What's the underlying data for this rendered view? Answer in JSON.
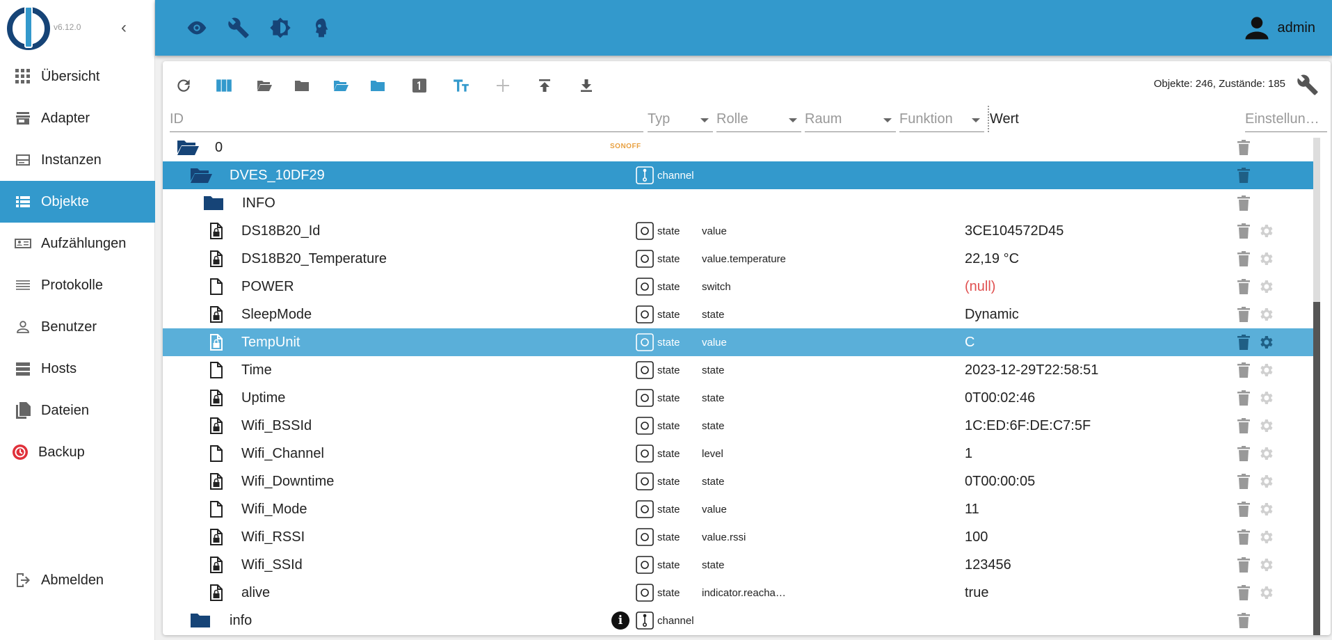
{
  "app": {
    "version": "v6.12.0",
    "user": "admin"
  },
  "colors": {
    "primary": "#3399cc",
    "selected_light": "#5aafd9",
    "null_value": "#e05050",
    "logo_dark": "#164477"
  },
  "sidebar": {
    "items": [
      {
        "label": "Übersicht",
        "icon": "grid-icon"
      },
      {
        "label": "Adapter",
        "icon": "store-icon"
      },
      {
        "label": "Instanzen",
        "icon": "instances-icon"
      },
      {
        "label": "Objekte",
        "icon": "list-icon",
        "active": true
      },
      {
        "label": "Aufzählungen",
        "icon": "enum-icon"
      },
      {
        "label": "Protokolle",
        "icon": "log-icon"
      },
      {
        "label": "Benutzer",
        "icon": "user-icon"
      },
      {
        "label": "Hosts",
        "icon": "hosts-icon"
      },
      {
        "label": "Dateien",
        "icon": "files-icon"
      },
      {
        "label": "Backup",
        "icon": "backup-icon"
      }
    ],
    "logout": "Abmelden"
  },
  "header": {
    "icons": [
      "eye-icon",
      "wrench-icon",
      "theme-icon",
      "expert-mode-icon"
    ]
  },
  "toolbar": {
    "counts": "Objekte: 246, Zustände: 185"
  },
  "filters": {
    "id": "ID",
    "typ": "Typ",
    "rolle": "Rolle",
    "raum": "Raum",
    "funktion": "Funktion",
    "wert": "Wert",
    "einstellungen": "Einstellun…"
  },
  "rows": [
    {
      "name": "0",
      "level": 0,
      "kind": "folder-open",
      "badge": "Sonoff"
    },
    {
      "name": "DVES_10DF29",
      "level": 1,
      "kind": "folder-open",
      "type": "channel",
      "selected": "dark"
    },
    {
      "name": "INFO",
      "level": 2,
      "kind": "folder"
    },
    {
      "name": "DS18B20_Id",
      "level": 3,
      "kind": "file-lock",
      "type": "state",
      "role": "value",
      "value": "3CE104572D45"
    },
    {
      "name": "DS18B20_Temperature",
      "level": 3,
      "kind": "file-lock",
      "type": "state",
      "role": "value.temperature",
      "value": "22,19 °C"
    },
    {
      "name": "POWER",
      "level": 3,
      "kind": "file",
      "type": "state",
      "role": "switch",
      "value": "(null)",
      "is_null": true
    },
    {
      "name": "SleepMode",
      "level": 3,
      "kind": "file-lock",
      "type": "state",
      "role": "state",
      "value": "Dynamic"
    },
    {
      "name": "TempUnit",
      "level": 3,
      "kind": "file-lock",
      "type": "state",
      "role": "value",
      "value": "C",
      "selected": "light"
    },
    {
      "name": "Time",
      "level": 3,
      "kind": "file",
      "type": "state",
      "role": "state",
      "value": "2023-12-29T22:58:51"
    },
    {
      "name": "Uptime",
      "level": 3,
      "kind": "file-lock",
      "type": "state",
      "role": "state",
      "value": "0T00:02:46"
    },
    {
      "name": "Wifi_BSSId",
      "level": 3,
      "kind": "file-lock",
      "type": "state",
      "role": "state",
      "value": "1C:ED:6F:DE:C7:5F"
    },
    {
      "name": "Wifi_Channel",
      "level": 3,
      "kind": "file",
      "type": "state",
      "role": "level",
      "value": "1"
    },
    {
      "name": "Wifi_Downtime",
      "level": 3,
      "kind": "file-lock",
      "type": "state",
      "role": "state",
      "value": "0T00:00:05"
    },
    {
      "name": "Wifi_Mode",
      "level": 3,
      "kind": "file",
      "type": "state",
      "role": "value",
      "value": "11"
    },
    {
      "name": "Wifi_RSSI",
      "level": 3,
      "kind": "file-lock",
      "type": "state",
      "role": "value.rssi",
      "value": "100"
    },
    {
      "name": "Wifi_SSId",
      "level": 3,
      "kind": "file-lock",
      "type": "state",
      "role": "state",
      "value": "123456"
    },
    {
      "name": "alive",
      "level": 3,
      "kind": "file-lock",
      "type": "state",
      "role": "indicator.reacha…",
      "value": "true"
    },
    {
      "name": "info",
      "level": 1,
      "kind": "folder",
      "type": "channel",
      "info": true
    }
  ]
}
